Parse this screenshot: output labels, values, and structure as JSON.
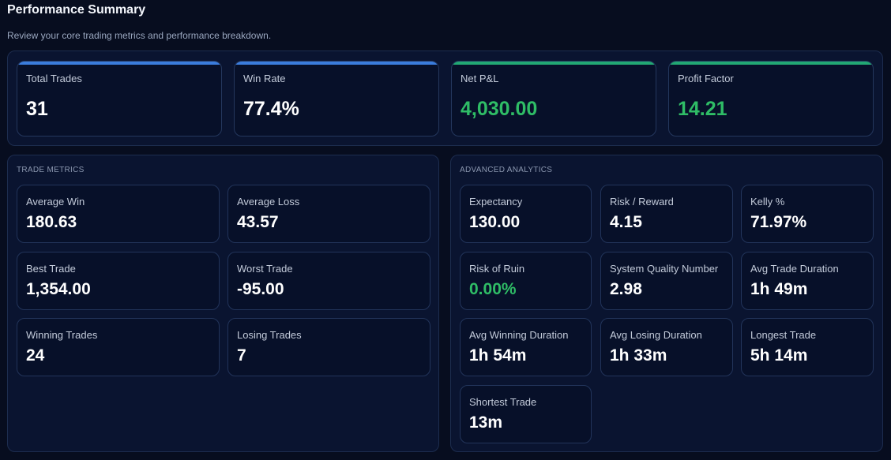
{
  "header": {
    "title": "Performance Summary",
    "subtitle": "Review your core trading metrics and performance breakdown."
  },
  "colors": {
    "accent_blue": "#3b7ddd",
    "accent_green": "#22a874",
    "positive": "#2fbd66"
  },
  "kpis": [
    {
      "label": "Total Trades",
      "value": "31"
    },
    {
      "label": "Win Rate",
      "value": "77.4%"
    },
    {
      "label": "Net P&L",
      "value": "4,030.00"
    },
    {
      "label": "Profit Factor",
      "value": "14.21"
    }
  ],
  "trade_metrics": {
    "title": "TRADE METRICS",
    "items": [
      {
        "label": "Average Win",
        "value": "180.63"
      },
      {
        "label": "Average Loss",
        "value": "43.57"
      },
      {
        "label": "Best Trade",
        "value": "1,354.00"
      },
      {
        "label": "Worst Trade",
        "value": "-95.00"
      },
      {
        "label": "Winning Trades",
        "value": "24"
      },
      {
        "label": "Losing Trades",
        "value": "7"
      }
    ]
  },
  "advanced": {
    "title": "ADVANCED ANALYTICS",
    "items": [
      {
        "label": "Expectancy",
        "value": "130.00"
      },
      {
        "label": "Risk / Reward",
        "value": "4.15"
      },
      {
        "label": "Kelly %",
        "value": "71.97%"
      },
      {
        "label": "Risk of Ruin",
        "value": "0.00%"
      },
      {
        "label": "System Quality Number",
        "value": "2.98"
      },
      {
        "label": "Avg Trade Duration",
        "value": "1h 49m"
      },
      {
        "label": "Avg Winning Duration",
        "value": "1h 54m"
      },
      {
        "label": "Avg Losing Duration",
        "value": "1h 33m"
      },
      {
        "label": "Longest Trade",
        "value": "5h 14m"
      },
      {
        "label": "Shortest Trade",
        "value": "13m"
      }
    ]
  }
}
